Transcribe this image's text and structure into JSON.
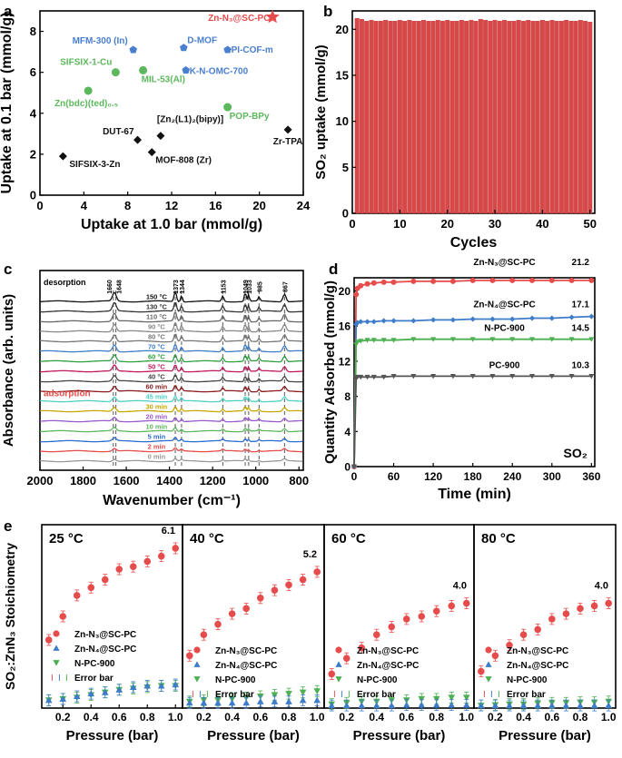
{
  "chart_data": [
    {
      "panel": "a",
      "type": "scatter",
      "xlabel": "Uptake at 1.0 bar (mmol/g)",
      "ylabel": "Uptake at 0.1 bar (mmol/g)",
      "xlim": [
        0,
        24
      ],
      "ylim": [
        0,
        9
      ],
      "xticks": [
        "0",
        "4",
        "8",
        "12",
        "16",
        "20",
        "24"
      ],
      "yticks": [
        "0",
        "2",
        "4",
        "6",
        "8"
      ],
      "points": [
        {
          "label": "Zn-N₃@SC-PC",
          "x": 21.2,
          "y": 8.7,
          "color": "#e74c4c",
          "marker": "star"
        },
        {
          "label": "MFM-300 (In)",
          "x": 8.5,
          "y": 7.1,
          "color": "#4a7fcf",
          "marker": "pentagon"
        },
        {
          "label": "D-MOF",
          "x": 13.1,
          "y": 7.2,
          "color": "#4a7fcf",
          "marker": "pentagon"
        },
        {
          "label": "PI-COF-m",
          "x": 17.1,
          "y": 7.1,
          "color": "#4a7fcf",
          "marker": "pentagon"
        },
        {
          "label": "K-N-OMC-700",
          "x": 13.3,
          "y": 6.1,
          "color": "#4a7fcf",
          "marker": "pentagon"
        },
        {
          "label": "SIFSIX-1-Cu",
          "x": 6.9,
          "y": 6.0,
          "color": "#5cb85c",
          "marker": "circle"
        },
        {
          "label": "MIL-53(Al)",
          "x": 9.4,
          "y": 6.1,
          "color": "#5cb85c",
          "marker": "circle"
        },
        {
          "label": "Zn(bdc)(ted)₀.₅",
          "x": 4.4,
          "y": 5.1,
          "color": "#5cb85c",
          "marker": "circle"
        },
        {
          "label": "POP-BPy",
          "x": 17.1,
          "y": 4.3,
          "color": "#5cb85c",
          "marker": "circle"
        },
        {
          "label": "DUT-67",
          "x": 8.9,
          "y": 2.7,
          "color": "#111111",
          "marker": "diamond"
        },
        {
          "label": "[Zn₂(L1)₂(bipy)]",
          "x": 11.0,
          "y": 2.9,
          "color": "#111111",
          "marker": "diamond"
        },
        {
          "label": "MOF-808 (Zr)",
          "x": 10.2,
          "y": 2.1,
          "color": "#111111",
          "marker": "diamond"
        },
        {
          "label": "Zr-TPA",
          "x": 22.6,
          "y": 3.2,
          "color": "#111111",
          "marker": "diamond"
        },
        {
          "label": "SIFSIX-3-Zn",
          "x": 2.1,
          "y": 1.9,
          "color": "#111111",
          "marker": "diamond"
        }
      ]
    },
    {
      "panel": "b",
      "type": "bar",
      "xlabel": "Cycles",
      "ylabel": "SO₂ uptake (mmol/g)",
      "xlim": [
        0,
        51
      ],
      "ylim": [
        0,
        22
      ],
      "xticks": [
        "0",
        "10",
        "20",
        "30",
        "40",
        "50"
      ],
      "yticks": [
        "0",
        "5",
        "10",
        "15",
        "20"
      ],
      "x": [
        1,
        2,
        3,
        4,
        5,
        6,
        7,
        8,
        9,
        10,
        11,
        12,
        13,
        14,
        15,
        16,
        17,
        18,
        19,
        20,
        21,
        22,
        23,
        24,
        25,
        26,
        27,
        28,
        29,
        30,
        31,
        32,
        33,
        34,
        35,
        36,
        37,
        38,
        39,
        40,
        41,
        42,
        43,
        44,
        45,
        46,
        47,
        48,
        49,
        50
      ],
      "values": [
        21.2,
        21.1,
        20.9,
        21.0,
        20.9,
        20.9,
        21.0,
        20.9,
        20.9,
        21.0,
        20.9,
        21.0,
        20.9,
        20.9,
        21.0,
        20.9,
        20.9,
        21.0,
        20.9,
        21.0,
        20.9,
        20.9,
        21.0,
        20.9,
        21.0,
        20.9,
        21.1,
        21.0,
        20.9,
        21.0,
        20.9,
        21.0,
        20.9,
        20.9,
        21.0,
        20.9,
        21.0,
        20.9,
        20.9,
        21.0,
        20.9,
        21.0,
        20.9,
        20.9,
        21.0,
        20.9,
        20.9,
        21.0,
        20.9,
        20.8
      ],
      "color": "#d94848"
    },
    {
      "panel": "c",
      "type": "line",
      "xlabel": "Wavenumber (cm⁻¹)",
      "ylabel": "Absorbance (arb. units)",
      "xlim": [
        2000,
        780
      ],
      "xticks": [
        "2000",
        "1800",
        "1600",
        "1400",
        "1200",
        "1000",
        "800"
      ],
      "header": "desorption",
      "section_label": "adsorption",
      "peaks": [
        "1660",
        "1648",
        "1373",
        "1344",
        "1153",
        "1049",
        "1033",
        "985",
        "867"
      ],
      "peak_values": [
        1660,
        1648,
        1373,
        1344,
        1153,
        1049,
        1033,
        985,
        867
      ],
      "series": [
        {
          "name": "150 °C",
          "color": "#111111"
        },
        {
          "name": "130 °C",
          "color": "#333333"
        },
        {
          "name": "110 °C",
          "color": "#666666"
        },
        {
          "name": "90 °C",
          "color": "#888888"
        },
        {
          "name": "80 °C",
          "color": "#777777"
        },
        {
          "name": "70 °C",
          "color": "#3d7cc9"
        },
        {
          "name": "60 °C",
          "color": "#2e9e3e"
        },
        {
          "name": "50 °C",
          "color": "#c2185b"
        },
        {
          "name": "40 °C",
          "color": "#444444"
        },
        {
          "name": "60 min",
          "color": "#8b1a1a"
        },
        {
          "name": "45 min",
          "color": "#4dd0c8"
        },
        {
          "name": "30 min",
          "color": "#c8a800"
        },
        {
          "name": "20 min",
          "color": "#9b59d0"
        },
        {
          "name": "10 min",
          "color": "#5cb85c"
        },
        {
          "name": "5 min",
          "color": "#2b6cd1"
        },
        {
          "name": "2 min",
          "color": "#e74c4c"
        },
        {
          "name": "0 min",
          "color": "#999999"
        }
      ]
    },
    {
      "panel": "d",
      "type": "line",
      "xlabel": "Time (min)",
      "ylabel": "Quantity Adsorbed (mmol/g)",
      "xlim": [
        0,
        365
      ],
      "ylim": [
        0,
        21.5
      ],
      "xticks": [
        "0",
        "60",
        "120",
        "180",
        "240",
        "300",
        "360"
      ],
      "yticks": [
        "0",
        "4",
        "8",
        "12",
        "16",
        "20"
      ],
      "annotation": "SO₂",
      "series": [
        {
          "name": "Zn-N₃@SC-PC",
          "end_label": "21.2",
          "color": "#e74c4c",
          "marker": "circle",
          "x": [
            0,
            3,
            5,
            10,
            20,
            30,
            45,
            60,
            90,
            120,
            150,
            180,
            210,
            240,
            270,
            300,
            330,
            360
          ],
          "y": [
            0,
            19.6,
            20.3,
            20.6,
            20.8,
            20.9,
            21.0,
            21.0,
            21.1,
            21.1,
            21.1,
            21.2,
            21.2,
            21.2,
            21.2,
            21.2,
            21.2,
            21.2
          ]
        },
        {
          "name": "Zn-N₄@SC-PC",
          "end_label": "17.1",
          "color": "#3d7cc9",
          "marker": "diamond",
          "x": [
            0,
            3,
            5,
            10,
            20,
            30,
            45,
            60,
            90,
            120,
            150,
            180,
            210,
            240,
            270,
            300,
            330,
            360
          ],
          "y": [
            0,
            16.2,
            16.4,
            16.5,
            16.5,
            16.5,
            16.6,
            16.6,
            16.6,
            16.7,
            16.7,
            16.8,
            16.8,
            16.8,
            16.9,
            16.9,
            17.0,
            17.1
          ]
        },
        {
          "name": "N-PC-900",
          "end_label": "14.5",
          "color": "#4caf50",
          "marker": "triangle-down",
          "x": [
            0,
            3,
            5,
            10,
            20,
            30,
            45,
            60,
            90,
            120,
            150,
            180,
            210,
            240,
            270,
            300,
            330,
            360
          ],
          "y": [
            0,
            13.9,
            14.2,
            14.3,
            14.4,
            14.4,
            14.4,
            14.4,
            14.5,
            14.5,
            14.5,
            14.5,
            14.5,
            14.5,
            14.5,
            14.5,
            14.5,
            14.5
          ]
        },
        {
          "name": "PC-900",
          "end_label": "10.3",
          "color": "#555555",
          "marker": "triangle-down",
          "x": [
            0,
            3,
            5,
            10,
            20,
            30,
            45,
            60,
            90,
            120,
            150,
            180,
            210,
            240,
            270,
            300,
            330,
            360
          ],
          "y": [
            0,
            10.1,
            10.2,
            10.2,
            10.2,
            10.2,
            10.2,
            10.3,
            10.3,
            10.3,
            10.3,
            10.3,
            10.3,
            10.3,
            10.3,
            10.3,
            10.3,
            10.3
          ]
        }
      ]
    },
    {
      "panel": "e",
      "type": "scatter",
      "ylabel": "SO₂:ZnN₃ Stoichiometry",
      "xlabel": "Pressure (bar)",
      "xlim": [
        0.05,
        1.05
      ],
      "ylim": [
        0,
        7
      ],
      "xticks": [
        "0.2",
        "0.4",
        "0.6",
        "0.8",
        "1.0"
      ],
      "legend": [
        "Zn-N₃@SC-PC",
        "Zn-N₄@SC-PC",
        "N-PC-900",
        "Error bar"
      ],
      "error_glyphs": [
        "I",
        "I",
        "I"
      ],
      "pressure": [
        0.1,
        0.2,
        0.3,
        0.4,
        0.5,
        0.6,
        0.7,
        0.8,
        0.9,
        1.0
      ],
      "subplots": [
        {
          "title": "25 °C",
          "end_label": "6.1",
          "zn_n3": [
            2.6,
            3.5,
            4.3,
            4.6,
            4.9,
            5.3,
            5.4,
            5.6,
            5.8,
            6.1
          ],
          "zn_n4": [
            0.3,
            0.35,
            0.45,
            0.55,
            0.6,
            0.7,
            0.8,
            0.85,
            0.85,
            0.9
          ],
          "npc": [
            0.3,
            0.35,
            0.4,
            0.5,
            0.6,
            0.7,
            0.75,
            0.8,
            0.85,
            0.85
          ]
        },
        {
          "title": "40 °C",
          "end_label": "5.2",
          "zn_n3": [
            2.0,
            2.8,
            3.2,
            3.6,
            3.8,
            4.2,
            4.5,
            4.7,
            4.9,
            5.2
          ],
          "zn_n4": [
            0.2,
            0.2,
            0.2,
            0.2,
            0.2,
            0.25,
            0.25,
            0.25,
            0.3,
            0.3
          ],
          "npc": [
            0.25,
            0.3,
            0.3,
            0.35,
            0.4,
            0.45,
            0.5,
            0.55,
            0.6,
            0.65
          ]
        },
        {
          "title": "60 °C",
          "end_label": "4.0",
          "zn_n3": [
            1.3,
            1.9,
            2.3,
            2.8,
            3.1,
            3.4,
            3.5,
            3.7,
            3.9,
            4.0
          ],
          "zn_n4": [
            0.1,
            0.1,
            0.1,
            0.1,
            0.1,
            0.12,
            0.12,
            0.12,
            0.12,
            0.12
          ],
          "npc": [
            0.15,
            0.2,
            0.25,
            0.25,
            0.3,
            0.3,
            0.35,
            0.35,
            0.4,
            0.4
          ]
        },
        {
          "title": "80 °C",
          "end_label": "4.0",
          "zn_n3": [
            1.4,
            2.0,
            2.4,
            2.8,
            3.0,
            3.4,
            3.6,
            3.8,
            3.9,
            4.0
          ],
          "zn_n4": [
            0.1,
            0.1,
            0.1,
            0.1,
            0.1,
            0.1,
            0.1,
            0.1,
            0.1,
            0.1
          ],
          "npc": [
            0.1,
            0.12,
            0.15,
            0.15,
            0.18,
            0.2,
            0.2,
            0.22,
            0.22,
            0.25
          ]
        }
      ]
    }
  ],
  "panel_letters": [
    "a",
    "b",
    "c",
    "d",
    "e"
  ]
}
